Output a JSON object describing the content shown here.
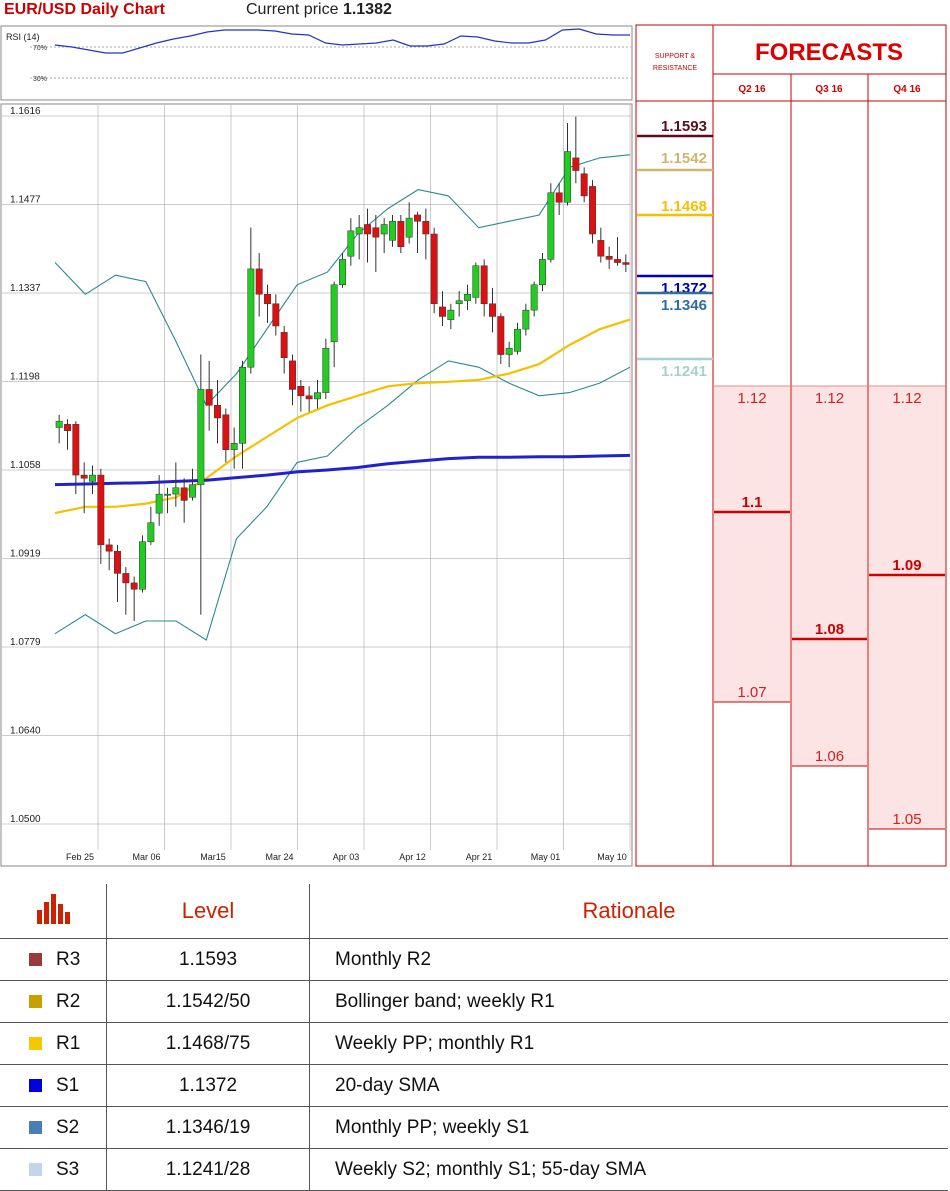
{
  "header": {
    "title": "EUR/USD Daily Chart",
    "price_label": "Current price",
    "price_value": "1.1382"
  },
  "rsi": {
    "label": "RSI (14)",
    "levels": [
      "70%",
      "30%"
    ]
  },
  "panel": {
    "support_title": "SUPPORT & RESISTANCE",
    "forecast_title": "FORECASTS",
    "quarters": [
      "Q2 16",
      "Q3 16",
      "Q4 16"
    ]
  },
  "chart_data": {
    "type": "candlestick",
    "title": "EUR/USD Daily Chart",
    "ylim": [
      1.05,
      1.1616
    ],
    "y_ticks": [
      "1.1616",
      "1.1477",
      "1.1337",
      "1.1198",
      "1.1058",
      "1.0919",
      "1.0779",
      "1.0640",
      "1.0500"
    ],
    "x_ticks": [
      "Feb 25",
      "Mar 06",
      "Mar15",
      "Mar 24",
      "Apr 03",
      "Apr 12",
      "Apr 21",
      "May 01",
      "May 10"
    ],
    "candles": [
      [
        1.1125,
        1.1135,
        1.1145,
        1.11
      ],
      [
        1.113,
        1.112,
        1.1138,
        1.109
      ],
      [
        1.113,
        1.105,
        1.1135,
        1.102
      ],
      [
        1.105,
        1.1045,
        1.107,
        1.099
      ],
      [
        1.104,
        1.105,
        1.1065,
        1.102
      ],
      [
        1.105,
        1.094,
        1.106,
        1.091
      ],
      [
        1.094,
        1.093,
        1.095,
        1.09
      ],
      [
        1.093,
        1.0895,
        1.094,
        1.085
      ],
      [
        1.0895,
        1.088,
        1.0905,
        1.083
      ],
      [
        1.088,
        1.087,
        1.089,
        1.082
      ],
      [
        1.087,
        1.0945,
        1.0955,
        1.0865
      ],
      [
        1.0945,
        1.0975,
        1.1,
        1.094
      ],
      [
        1.099,
        1.102,
        1.105,
        1.097
      ],
      [
        1.102,
        1.102,
        1.103,
        1.099
      ],
      [
        1.102,
        1.103,
        1.107,
        1.1
      ],
      [
        1.103,
        1.101,
        1.1045,
        1.0975
      ],
      [
        1.1015,
        1.1035,
        1.106,
        1.101
      ],
      [
        1.1035,
        1.1185,
        1.124,
        1.083
      ],
      [
        1.1185,
        1.116,
        1.123,
        1.112
      ],
      [
        1.116,
        1.114,
        1.12,
        1.11
      ],
      [
        1.1145,
        1.109,
        1.1155,
        1.107
      ],
      [
        1.109,
        1.11,
        1.1125,
        1.106
      ],
      [
        1.11,
        1.122,
        1.123,
        1.106
      ],
      [
        1.122,
        1.1375,
        1.144,
        1.121
      ],
      [
        1.1375,
        1.1335,
        1.14,
        1.13
      ],
      [
        1.1335,
        1.132,
        1.135,
        1.129
      ],
      [
        1.132,
        1.1285,
        1.1335,
        1.127
      ],
      [
        1.1275,
        1.1235,
        1.1285,
        1.121
      ],
      [
        1.123,
        1.1185,
        1.124,
        1.116
      ],
      [
        1.119,
        1.1175,
        1.12,
        1.115
      ],
      [
        1.1175,
        1.117,
        1.119,
        1.115
      ],
      [
        1.117,
        1.118,
        1.12,
        1.1155
      ],
      [
        1.118,
        1.125,
        1.1265,
        1.117
      ],
      [
        1.126,
        1.135,
        1.1355,
        1.122
      ],
      [
        1.135,
        1.139,
        1.14,
        1.1345
      ],
      [
        1.1395,
        1.1435,
        1.1455,
        1.138
      ],
      [
        1.143,
        1.144,
        1.146,
        1.139
      ],
      [
        1.1445,
        1.143,
        1.147,
        1.1385
      ],
      [
        1.144,
        1.1425,
        1.146,
        1.137
      ],
      [
        1.143,
        1.1445,
        1.1455,
        1.14
      ],
      [
        1.142,
        1.145,
        1.146,
        1.141
      ],
      [
        1.145,
        1.141,
        1.146,
        1.14
      ],
      [
        1.1425,
        1.1455,
        1.148,
        1.1415
      ],
      [
        1.146,
        1.145,
        1.1465,
        1.14
      ],
      [
        1.145,
        1.143,
        1.147,
        1.139
      ],
      [
        1.143,
        1.132,
        1.144,
        1.1305
      ],
      [
        1.1315,
        1.13,
        1.134,
        1.1285
      ],
      [
        1.1295,
        1.131,
        1.132,
        1.128
      ],
      [
        1.132,
        1.1325,
        1.134,
        1.13
      ],
      [
        1.1325,
        1.1335,
        1.135,
        1.131
      ],
      [
        1.133,
        1.138,
        1.1385,
        1.132
      ],
      [
        1.138,
        1.132,
        1.139,
        1.13
      ],
      [
        1.132,
        1.13,
        1.1345,
        1.1275
      ],
      [
        1.13,
        1.124,
        1.1305,
        1.1225
      ],
      [
        1.124,
        1.125,
        1.126,
        1.122
      ],
      [
        1.1245,
        1.128,
        1.129,
        1.124
      ],
      [
        1.128,
        1.131,
        1.132,
        1.127
      ],
      [
        1.131,
        1.135,
        1.1355,
        1.13
      ],
      [
        1.135,
        1.139,
        1.14,
        1.134
      ],
      [
        1.139,
        1.1495,
        1.151,
        1.1385
      ],
      [
        1.1495,
        1.148,
        1.151,
        1.146
      ],
      [
        1.148,
        1.156,
        1.1605,
        1.1475
      ],
      [
        1.155,
        1.153,
        1.1615,
        1.151
      ],
      [
        1.1525,
        1.149,
        1.1535,
        1.148
      ],
      [
        1.1505,
        1.143,
        1.1515,
        1.1415
      ],
      [
        1.142,
        1.1395,
        1.144,
        1.1385
      ],
      [
        1.1395,
        1.139,
        1.141,
        1.1375
      ],
      [
        1.139,
        1.1385,
        1.1425,
        1.138
      ],
      [
        1.1385,
        1.1382,
        1.1398,
        1.137
      ]
    ],
    "sma200": [
      1.1035,
      1.1036,
      1.1037,
      1.1038,
      1.104,
      1.1042,
      1.1046,
      1.105,
      1.1055,
      1.1058,
      1.1062,
      1.1068,
      1.1072,
      1.1076,
      1.1078,
      1.1078,
      1.1079,
      1.1079,
      1.108,
      1.1081
    ],
    "sma55": [
      1.099,
      1.1,
      1.1,
      1.1005,
      1.1015,
      1.1045,
      1.108,
      1.111,
      1.114,
      1.116,
      1.1175,
      1.119,
      1.1195,
      1.1197,
      1.12,
      1.121,
      1.1225,
      1.1255,
      1.128,
      1.1295
    ],
    "boll_upper": [
      1.1385,
      1.1335,
      1.1365,
      1.1355,
      1.126,
      1.116,
      1.121,
      1.128,
      1.135,
      1.137,
      1.143,
      1.147,
      1.15,
      1.149,
      1.144,
      1.145,
      1.146,
      1.1535,
      1.155,
      1.1555
    ],
    "boll_lower": [
      1.08,
      1.083,
      1.08,
      1.082,
      1.082,
      1.079,
      1.095,
      1.1,
      1.107,
      1.108,
      1.1125,
      1.116,
      1.12,
      1.123,
      1.122,
      1.1195,
      1.1175,
      1.118,
      1.1195,
      1.122
    ],
    "rsi_values": [
      55,
      53,
      50,
      47,
      47,
      52,
      57,
      61,
      64,
      68,
      70,
      70,
      70,
      69,
      66,
      65,
      57,
      55,
      56,
      57,
      60,
      54,
      54,
      56,
      64,
      63,
      59,
      57,
      57,
      60,
      70,
      71,
      66,
      65,
      65
    ]
  },
  "sr_levels": [
    {
      "value": "1.1593",
      "color": "#5a0f1e"
    },
    {
      "value": "1.1542",
      "color": "#d2b46e"
    },
    {
      "value": "1.1468",
      "color": "#f5c000"
    },
    {
      "value": "1.1372",
      "color": "#0000b4"
    },
    {
      "value": "1.1346",
      "color": "#2f6fa0"
    },
    {
      "value": "1.1241",
      "color": "#a8d0ce"
    }
  ],
  "forecasts": [
    {
      "quarter": "Q2 16",
      "high": "1.12",
      "mid": "1.1",
      "low": "1.07"
    },
    {
      "quarter": "Q3 16",
      "high": "1.12",
      "mid": "1.08",
      "low": "1.06"
    },
    {
      "quarter": "Q4 16",
      "high": "1.12",
      "mid": "1.09",
      "low": "1.05"
    }
  ],
  "table": {
    "headers": [
      "Level",
      "Rationale"
    ],
    "rows": [
      {
        "name": "R3",
        "value": "1.1593",
        "rationale": "Monthly R2",
        "color": "#9a3a3a"
      },
      {
        "name": "R2",
        "value": "1.1542/50",
        "rationale": "Bollinger band; weekly R1",
        "color": "#c8a000"
      },
      {
        "name": "R1",
        "value": "1.1468/75",
        "rationale": "Weekly PP; monthly R1",
        "color": "#f5c800"
      },
      {
        "name": "S1",
        "value": "1.1372",
        "rationale": "20-day SMA",
        "color": "#0000dd"
      },
      {
        "name": "S2",
        "value": "1.1346/19",
        "rationale": "Monthly PP; weekly S1",
        "color": "#4a7fb5"
      },
      {
        "name": "S3",
        "value": "1.1241/28",
        "rationale": "Weekly S2; monthly S1; 55-day SMA",
        "color": "#c3d5ea"
      }
    ]
  }
}
